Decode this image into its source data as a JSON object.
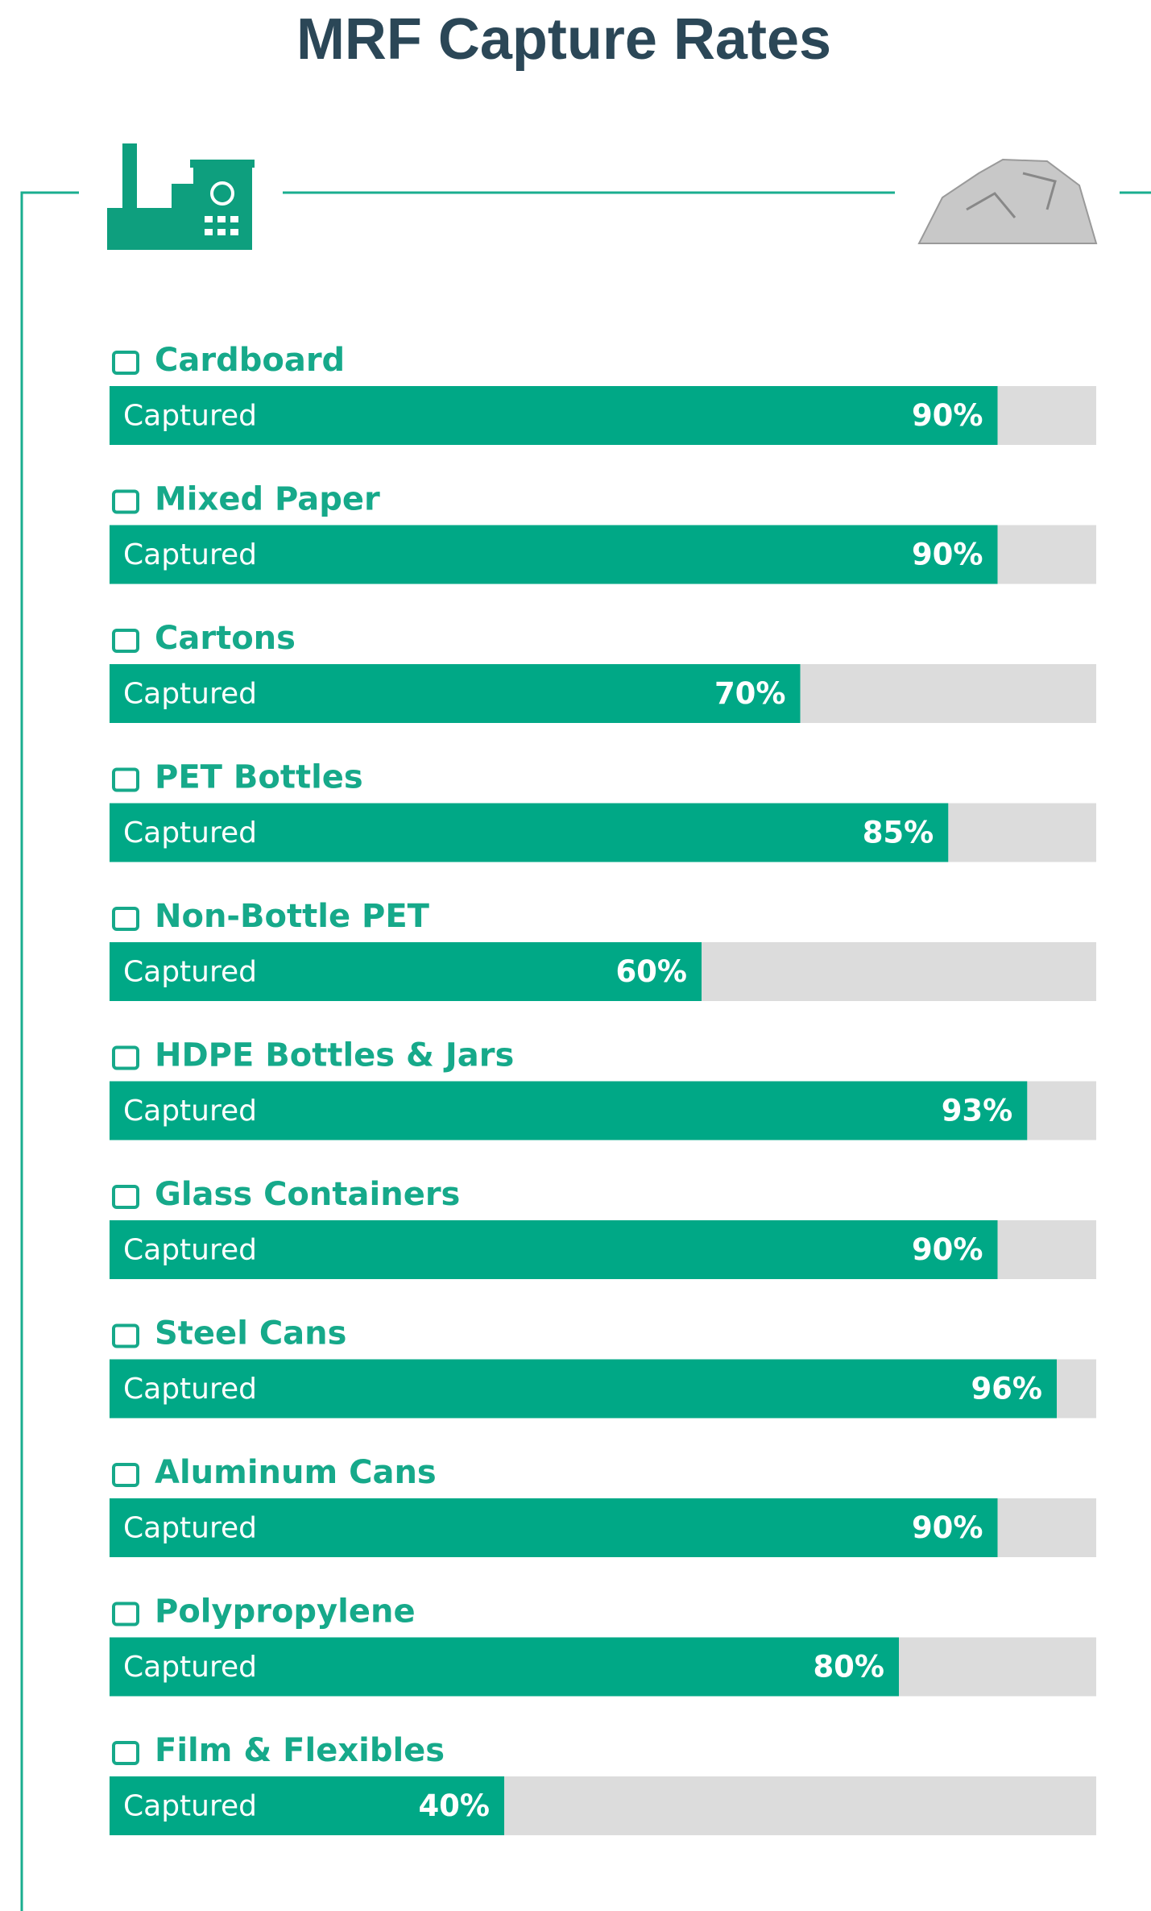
{
  "chart_data": {
    "type": "bar",
    "orientation": "horizontal",
    "title": "MRF Capture Rates",
    "categories": [
      "Cardboard",
      "Mixed Paper",
      "Cartons",
      "PET Bottles",
      "Non-Bottle PET",
      "HDPE Bottles & Jars",
      "Glass Containers",
      "Steel Cans",
      "Aluminum Cans",
      "Polypropylene",
      "Film & Flexibles"
    ],
    "series": [
      {
        "name": "Captured",
        "color": "#00a886",
        "values": [
          90,
          90,
          70,
          85,
          60,
          93,
          90,
          96,
          90,
          80,
          40
        ],
        "value_labels": [
          "90%",
          "90%",
          "70%",
          "85%",
          "60%",
          "93%",
          "90%",
          "96%",
          "90%",
          "80%",
          "40%"
        ]
      }
    ],
    "track_color": "#dcdcdc",
    "xlim": [
      0,
      100
    ]
  }
}
